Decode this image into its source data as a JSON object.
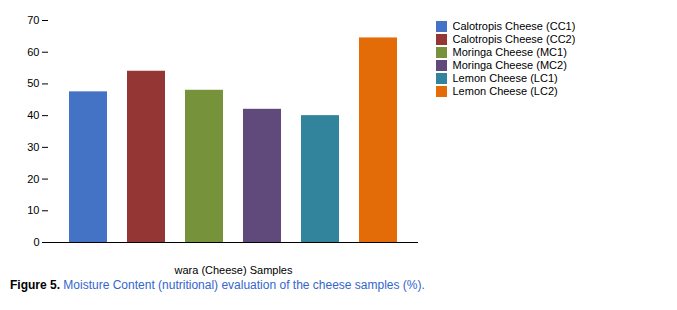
{
  "chart_data": {
    "type": "bar",
    "categories": [
      "Calotropis Cheese (CC1)",
      "Calotropis Cheese (CC2)",
      "Moringa Cheese (MC1)",
      "Moringa Cheese (MC2)",
      "Lemon Cheese (LC1)",
      "Lemon Cheese (LC2)"
    ],
    "values": [
      47.5,
      54.0,
      48.0,
      42.0,
      40.0,
      64.5
    ],
    "colors": [
      "#4472C4",
      "#943634",
      "#76933C",
      "#604A7B",
      "#31849B",
      "#E36C09"
    ],
    "xlabel": "wara (Cheese) Samples",
    "ylim": [
      0,
      70
    ],
    "yticks": [
      0,
      10,
      20,
      30,
      40,
      50,
      60,
      70
    ],
    "tick_labels": "y",
    "legend": "right",
    "grid": false,
    "caption_label": "Figure 5.",
    "caption": "Moisture Content (nutritional) evaluation of the cheese samples (%)."
  }
}
